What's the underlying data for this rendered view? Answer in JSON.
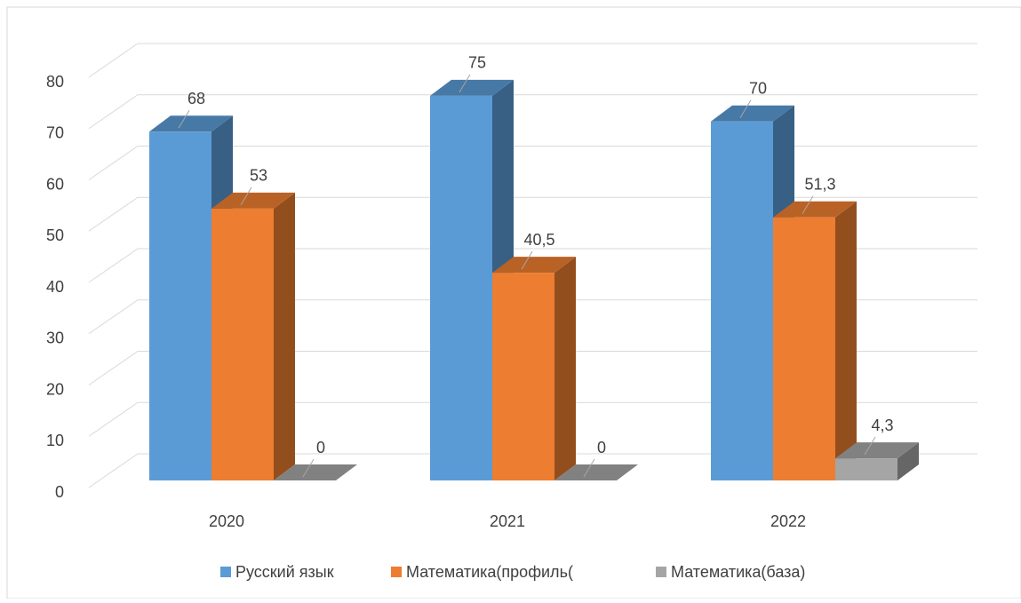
{
  "chart_data": {
    "type": "bar3d",
    "categories": [
      "2020",
      "2021",
      "2022"
    ],
    "series": [
      {
        "name": "Русский язык",
        "color": "#5b9bd5",
        "values": [
          68,
          75,
          70
        ]
      },
      {
        "name": "Математика(профиль(",
        "color": "#ed7d31",
        "values": [
          53,
          40.5,
          51.3
        ],
        "value_labels": [
          "53",
          "40,5",
          "51,3"
        ]
      },
      {
        "name": "Математика(база)",
        "color": "#a5a5a5",
        "values": [
          0,
          0,
          4.3
        ],
        "value_labels": [
          "0",
          "0",
          "4,3"
        ]
      }
    ],
    "ylim": [
      0,
      80
    ],
    "yticks": [
      0,
      10,
      20,
      30,
      40,
      50,
      60,
      70,
      80
    ],
    "grid": true,
    "legend": "bottom"
  }
}
